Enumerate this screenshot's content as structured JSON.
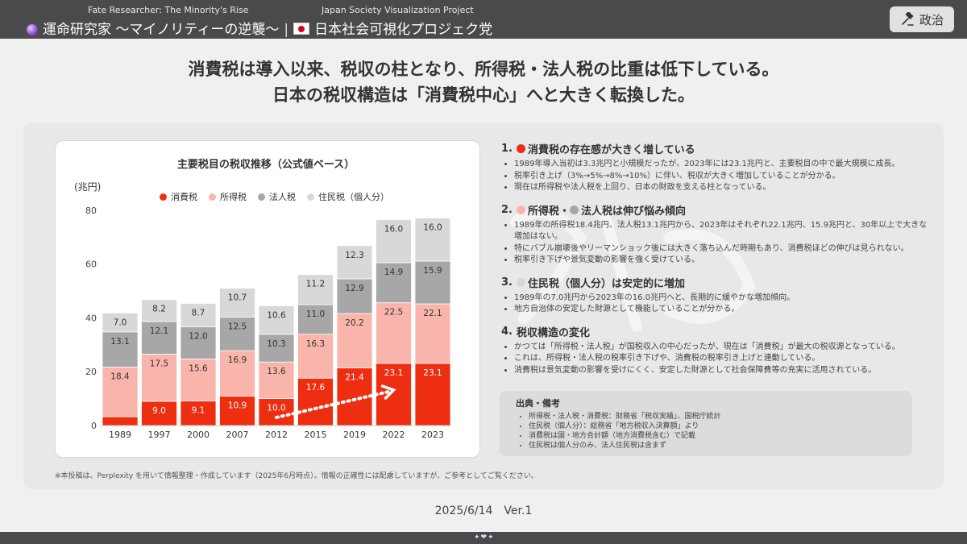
{
  "header": {
    "brand_sub": "Fate Researcher: The Minority's Rise",
    "brand_main": "運命研究家 〜マイノリティーの逆襲〜",
    "project_sub": "Japan Society Visualization Project",
    "project_main": "日本社会可視化プロジェク党",
    "politics_button": "政治"
  },
  "headline": {
    "line1": "消費税は導入以来、税収の柱となり、所得税・法人税の比重は低下している。",
    "line2": "日本の税収構造は「消費税中心」へと大きく転換した。"
  },
  "chart_data": {
    "type": "bar",
    "stacked": true,
    "title": "主要税目の税収推移（公式値ベース）",
    "ylabel": "(兆円)",
    "ylim": [
      0,
      80
    ],
    "yticks": [
      "0",
      "20",
      "40",
      "60",
      "80"
    ],
    "categories": [
      "1989",
      "1997",
      "2000",
      "2007",
      "2012",
      "2015",
      "2019",
      "2022",
      "2023"
    ],
    "legend_position": "top",
    "series": [
      {
        "name": "消費税",
        "color": "#ee2e10",
        "values": [
          3.3,
          9.0,
          9.1,
          10.9,
          10.0,
          17.6,
          21.4,
          23.1,
          23.1
        ],
        "labels": [
          "",
          "9.0",
          "9.1",
          "10.9",
          "10.0",
          "17.6",
          "21.4",
          "23.1",
          "23.1"
        ]
      },
      {
        "name": "所得税",
        "color": "#f9b5ab",
        "values": [
          18.4,
          17.5,
          15.6,
          16.9,
          13.6,
          16.3,
          20.2,
          22.5,
          22.1
        ],
        "labels": [
          "18.4",
          "17.5",
          "15.6",
          "16.9",
          "13.6",
          "16.3",
          "20.2",
          "22.5",
          "22.1"
        ]
      },
      {
        "name": "法人税",
        "color": "#a7a7a7",
        "values": [
          13.1,
          12.1,
          12.0,
          12.5,
          10.3,
          11.0,
          12.9,
          14.9,
          15.9
        ],
        "labels": [
          "13.1",
          "12.1",
          "12.0",
          "12.5",
          "10.3",
          "11.0",
          "12.9",
          "14.9",
          "15.9"
        ]
      },
      {
        "name": "住民税（個人分）",
        "color": "#d8d8d8",
        "values": [
          7.0,
          8.2,
          8.7,
          10.7,
          10.6,
          11.2,
          12.3,
          16.0,
          16.0
        ],
        "labels": [
          "7.0",
          "8.2",
          "8.7",
          "10.7",
          "10.6",
          "11.2",
          "12.3",
          "16.0",
          "16.0"
        ]
      }
    ],
    "annotation": "dotted-arrow-2012-to-2022"
  },
  "findings": [
    {
      "num": "1.",
      "dot_color": "#ee2e10",
      "title": "消費税の存在感が大きく増している",
      "bullets": [
        "1989年導入当初は3.3兆円と小規模だったが、2023年には23.1兆円と、主要税目の中で最大規模に成長。",
        "税率引き上げ（3%→5%→8%→10%）に伴い、税収が大きく増加していることが分かる。",
        "現在は所得税や法人税を上回り、日本の財政を支える柱となっている。"
      ]
    },
    {
      "num": "2.",
      "dot_color": "#f9b5ab",
      "dot2_color": "#a7a7a7",
      "title_a": "所得税・",
      "title_b": "法人税は伸び悩み傾向",
      "bullets": [
        "1989年の所得税18.4兆円、法人税13.1兆円から、2023年はそれぞれ22.1兆円、15.9兆円と、30年以上で大きな増加はない。",
        "特にバブル崩壊後やリーマンショック後には大きく落ち込んだ時期もあり、消費税ほどの伸びは見られない。",
        "税率引き下げや景気変動の影響を強く受けている。"
      ]
    },
    {
      "num": "3.",
      "dot_color": "#d8d8d8",
      "title": "住民税（個人分）は安定的に増加",
      "bullets": [
        "1989年の7.0兆円から2023年の16.0兆円へと、長期的に緩やかな増加傾向。",
        "地方自治体の安定した財源として機能していることが分かる。"
      ]
    },
    {
      "num": "4.",
      "title": "税収構造の変化",
      "bullets": [
        "かつては「所得税・法人税」が国税収入の中心だったが、現在は「消費税」が最大の税収源となっている。",
        "これは、所得税・法人税の税率引き下げや、消費税の税率引き上げと連動している。",
        "消費税は景気変動の影響を受けにくく、安定した財源として社会保障費等の充実に活用されている。"
      ]
    }
  ],
  "sources": {
    "title": "出典・備考",
    "items": [
      "所得税・法人税・消費税：財務省「税収実績」、国税庁統計",
      "住民税（個人分）：総務省「地方税収入決算額」より",
      "消費税は国・地方合計額（地方消費税含む）で記載",
      "住民税は個人分のみ、法人住民税は含まず"
    ]
  },
  "footnote": "※本投稿は、Perplexity を用いて情報整理・作成しています（2025年6月時点）。情報の正確性には配慮していますが、ご参考としてご覧ください。",
  "date_line": "2025/6/14　Ver.1"
}
